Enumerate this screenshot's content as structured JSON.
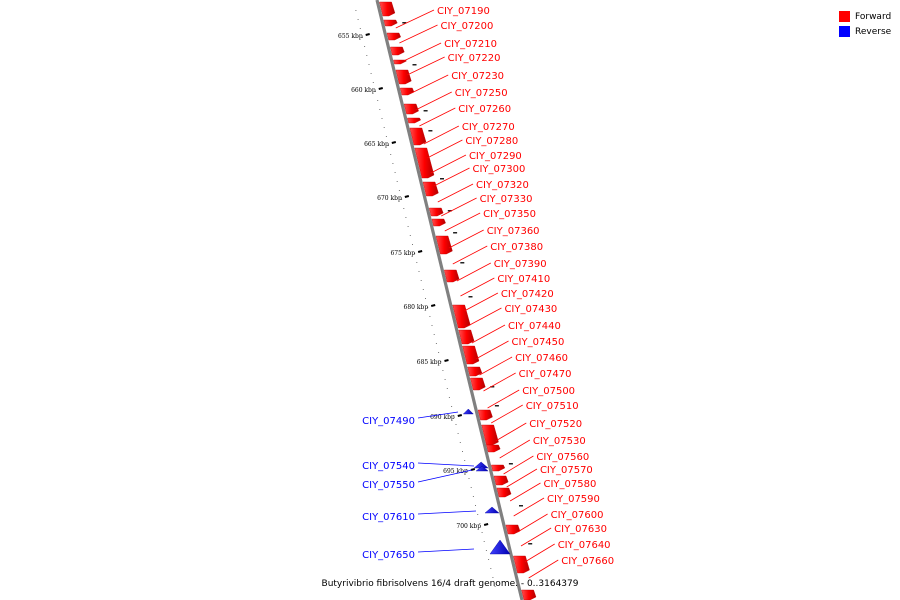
{
  "caption": "Butyrivibrio fibrisolvens 16/4 draft genome. - 0..3164379",
  "legend": [
    {
      "label": "Forward",
      "color": "#ff0000"
    },
    {
      "label": "Reverse",
      "color": "#0000ff"
    }
  ],
  "ticks": [
    "655 kbp",
    "660 kbp",
    "665 kbp",
    "670 kbp",
    "675 kbp",
    "680 kbp",
    "685 kbp",
    "690 kbp",
    "695 kbp",
    "700 kbp"
  ],
  "forward_genes": [
    "CIY_07190",
    "CIY_07200",
    "CIY_07210",
    "CIY_07220",
    "CIY_07230",
    "CIY_07250",
    "CIY_07260",
    "CIY_07270",
    "CIY_07280",
    "CIY_07290",
    "CIY_07300",
    "CIY_07320",
    "CIY_07330",
    "CIY_07350",
    "CIY_07360",
    "CIY_07380",
    "CIY_07390",
    "CIY_07410",
    "CIY_07420",
    "CIY_07430",
    "CIY_07440",
    "CIY_07450",
    "CIY_07460",
    "CIY_07470",
    "CIY_07500",
    "CIY_07510",
    "CIY_07520",
    "CIY_07530",
    "CIY_07560",
    "CIY_07570",
    "CIY_07580",
    "CIY_07590",
    "CIY_07600",
    "CIY_07630",
    "CIY_07640",
    "CIY_07660"
  ],
  "reverse_genes": [
    "CIY_07490",
    "CIY_07540",
    "CIY_07550",
    "CIY_07610",
    "CIY_07650"
  ]
}
